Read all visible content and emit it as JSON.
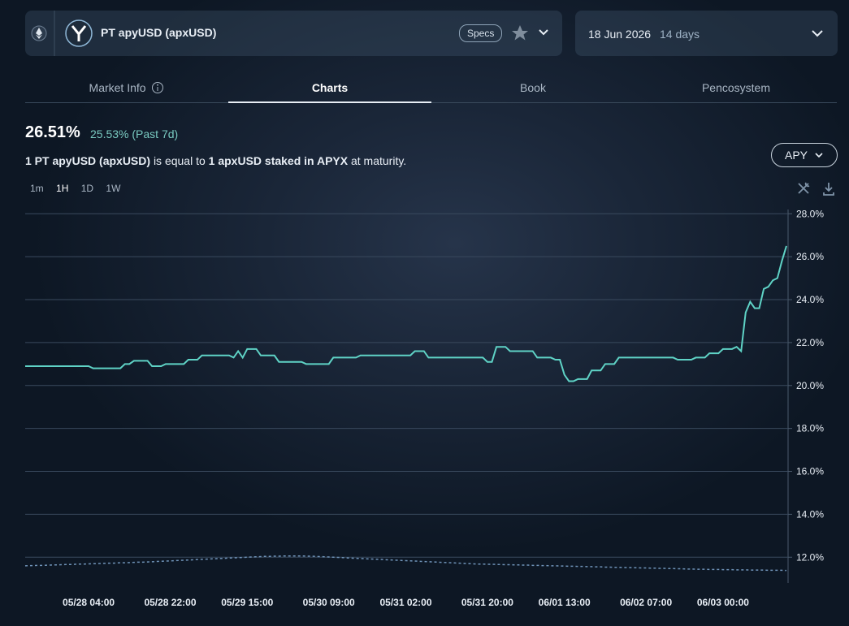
{
  "header": {
    "title": "PT apyUSD (apxUSD)",
    "specs": "Specs",
    "date": "18 Jun 2026",
    "days": "14 days"
  },
  "tabs": [
    "Market Info",
    "Charts",
    "Book",
    "Pencosystem"
  ],
  "summary": {
    "apy": "26.51%",
    "past": "25.53% (Past 7d)"
  },
  "description": {
    "subject": "1 PT apyUSD (apxUSD)",
    "connector": "is equal to",
    "object": "1 apxUSD staked in APYX",
    "suffix": "at maturity."
  },
  "intervals": [
    "1m",
    "1H",
    "1D",
    "1W"
  ],
  "metric": "APY",
  "chart_data": {
    "type": "line",
    "grid": true,
    "ylim": [
      10.8,
      28.2
    ],
    "yticks": [
      {
        "value": 12,
        "label": "12.0%"
      },
      {
        "value": 14,
        "label": "14.0%"
      },
      {
        "value": 16,
        "label": "16.0%"
      },
      {
        "value": 18,
        "label": "18.0%"
      },
      {
        "value": 20,
        "label": "20.0%"
      },
      {
        "value": 22,
        "label": "22.0%"
      },
      {
        "value": 24,
        "label": "24.0%"
      },
      {
        "value": 26,
        "label": "26.0%"
      },
      {
        "value": 28,
        "label": "28.0%"
      }
    ],
    "categories": [
      null,
      null,
      null,
      null,
      null,
      null,
      null,
      null,
      null,
      null,
      null,
      null,
      null,
      null,
      "05/28 04:00",
      null,
      null,
      null,
      null,
      null,
      null,
      null,
      null,
      null,
      null,
      null,
      null,
      null,
      null,
      null,
      null,
      null,
      "05/28 22:00",
      null,
      null,
      null,
      null,
      null,
      null,
      null,
      null,
      null,
      null,
      null,
      null,
      null,
      null,
      null,
      null,
      "05/29 15:00",
      null,
      null,
      null,
      null,
      null,
      null,
      null,
      null,
      null,
      null,
      null,
      null,
      null,
      null,
      null,
      null,
      null,
      "05/30 09:00",
      null,
      null,
      null,
      null,
      null,
      null,
      null,
      null,
      null,
      null,
      null,
      null,
      null,
      null,
      null,
      null,
      "05/31 02:00",
      null,
      null,
      null,
      null,
      null,
      null,
      null,
      null,
      null,
      null,
      null,
      null,
      null,
      null,
      null,
      null,
      null,
      "05/31 20:00",
      null,
      null,
      null,
      null,
      null,
      null,
      null,
      null,
      null,
      null,
      null,
      null,
      null,
      null,
      null,
      null,
      "06/01 13:00",
      null,
      null,
      null,
      null,
      null,
      null,
      null,
      null,
      null,
      null,
      null,
      null,
      null,
      null,
      null,
      null,
      null,
      "06/02 07:00",
      null,
      null,
      null,
      null,
      null,
      null,
      null,
      null,
      null,
      null,
      null,
      null,
      null,
      null,
      null,
      null,
      "06/03 00:00",
      null,
      null,
      null,
      null,
      null,
      null,
      null,
      null,
      null,
      null,
      null,
      null,
      null,
      null
    ],
    "series": [
      {
        "color": "#5fd3c6",
        "values": [
          20.9,
          20.9,
          20.9,
          20.9,
          20.9,
          20.9,
          20.9,
          20.9,
          20.9,
          20.9,
          20.9,
          20.9,
          20.9,
          20.9,
          20.9,
          20.8,
          20.8,
          20.8,
          20.8,
          20.8,
          20.8,
          20.8,
          21.0,
          21.0,
          21.15,
          21.15,
          21.15,
          21.15,
          20.9,
          20.9,
          20.9,
          21.0,
          21.0,
          21.0,
          21.0,
          21.0,
          21.2,
          21.2,
          21.2,
          21.4,
          21.4,
          21.4,
          21.4,
          21.4,
          21.4,
          21.4,
          21.3,
          21.6,
          21.3,
          21.7,
          21.7,
          21.7,
          21.4,
          21.4,
          21.4,
          21.4,
          21.1,
          21.1,
          21.1,
          21.1,
          21.1,
          21.1,
          21.0,
          21.0,
          21.0,
          21.0,
          21.0,
          21.0,
          21.3,
          21.3,
          21.3,
          21.3,
          21.3,
          21.3,
          21.4,
          21.4,
          21.4,
          21.4,
          21.4,
          21.4,
          21.4,
          21.4,
          21.4,
          21.4,
          21.4,
          21.4,
          21.6,
          21.6,
          21.6,
          21.3,
          21.3,
          21.3,
          21.3,
          21.3,
          21.3,
          21.3,
          21.3,
          21.3,
          21.3,
          21.3,
          21.3,
          21.3,
          21.1,
          21.1,
          21.8,
          21.8,
          21.8,
          21.6,
          21.6,
          21.6,
          21.6,
          21.6,
          21.6,
          21.3,
          21.3,
          21.3,
          21.3,
          21.2,
          21.2,
          20.5,
          20.2,
          20.2,
          20.3,
          20.3,
          20.3,
          20.7,
          20.7,
          20.7,
          21.0,
          21.0,
          21.0,
          21.3,
          21.3,
          21.3,
          21.3,
          21.3,
          21.3,
          21.3,
          21.3,
          21.3,
          21.3,
          21.3,
          21.3,
          21.3,
          21.2,
          21.2,
          21.2,
          21.2,
          21.3,
          21.3,
          21.3,
          21.5,
          21.5,
          21.5,
          21.7,
          21.7,
          21.7,
          21.8,
          21.6,
          23.4,
          23.9,
          23.6,
          23.6,
          24.5,
          24.6,
          24.9,
          25.0,
          25.8,
          26.5
        ]
      },
      {
        "color": "#6f93b8",
        "dashed": true,
        "values": [
          11.6,
          11.61,
          11.61,
          11.62,
          11.62,
          11.63,
          11.64,
          11.64,
          11.65,
          11.66,
          11.66,
          11.67,
          11.68,
          11.68,
          11.69,
          11.7,
          11.7,
          11.71,
          11.72,
          11.72,
          11.73,
          11.74,
          11.74,
          11.75,
          11.76,
          11.77,
          11.77,
          11.78,
          11.79,
          11.8,
          11.81,
          11.82,
          11.83,
          11.84,
          11.85,
          11.86,
          11.87,
          11.88,
          11.89,
          11.9,
          11.91,
          11.92,
          11.93,
          11.94,
          11.95,
          11.96,
          11.97,
          11.98,
          11.99,
          12.0,
          12.01,
          12.02,
          12.03,
          12.04,
          12.04,
          12.05,
          12.05,
          12.06,
          12.06,
          12.06,
          12.06,
          12.06,
          12.05,
          12.05,
          12.04,
          12.03,
          12.02,
          12.01,
          12.0,
          11.99,
          11.98,
          11.97,
          11.96,
          11.95,
          11.94,
          11.93,
          11.92,
          11.91,
          11.9,
          11.89,
          11.88,
          11.87,
          11.86,
          11.85,
          11.84,
          11.83,
          11.82,
          11.81,
          11.8,
          11.79,
          11.78,
          11.77,
          11.76,
          11.75,
          11.74,
          11.73,
          11.72,
          11.71,
          11.7,
          11.69,
          11.68,
          11.68,
          11.67,
          11.67,
          11.66,
          11.66,
          11.65,
          11.65,
          11.64,
          11.64,
          11.63,
          11.63,
          11.62,
          11.62,
          11.61,
          11.61,
          11.6,
          11.6,
          11.59,
          11.59,
          11.58,
          11.58,
          11.57,
          11.57,
          11.56,
          11.56,
          11.55,
          11.55,
          11.54,
          11.54,
          11.53,
          11.53,
          11.52,
          11.52,
          11.51,
          11.51,
          11.5,
          11.5,
          11.49,
          11.49,
          11.48,
          11.48,
          11.47,
          11.47,
          11.46,
          11.46,
          11.45,
          11.45,
          11.44,
          11.44,
          11.44,
          11.43,
          11.43,
          11.43,
          11.42,
          11.42,
          11.42,
          11.41,
          11.41,
          11.41,
          11.4,
          11.4,
          11.4,
          11.4,
          11.39,
          11.39,
          11.39,
          11.39,
          11.38
        ]
      }
    ]
  }
}
